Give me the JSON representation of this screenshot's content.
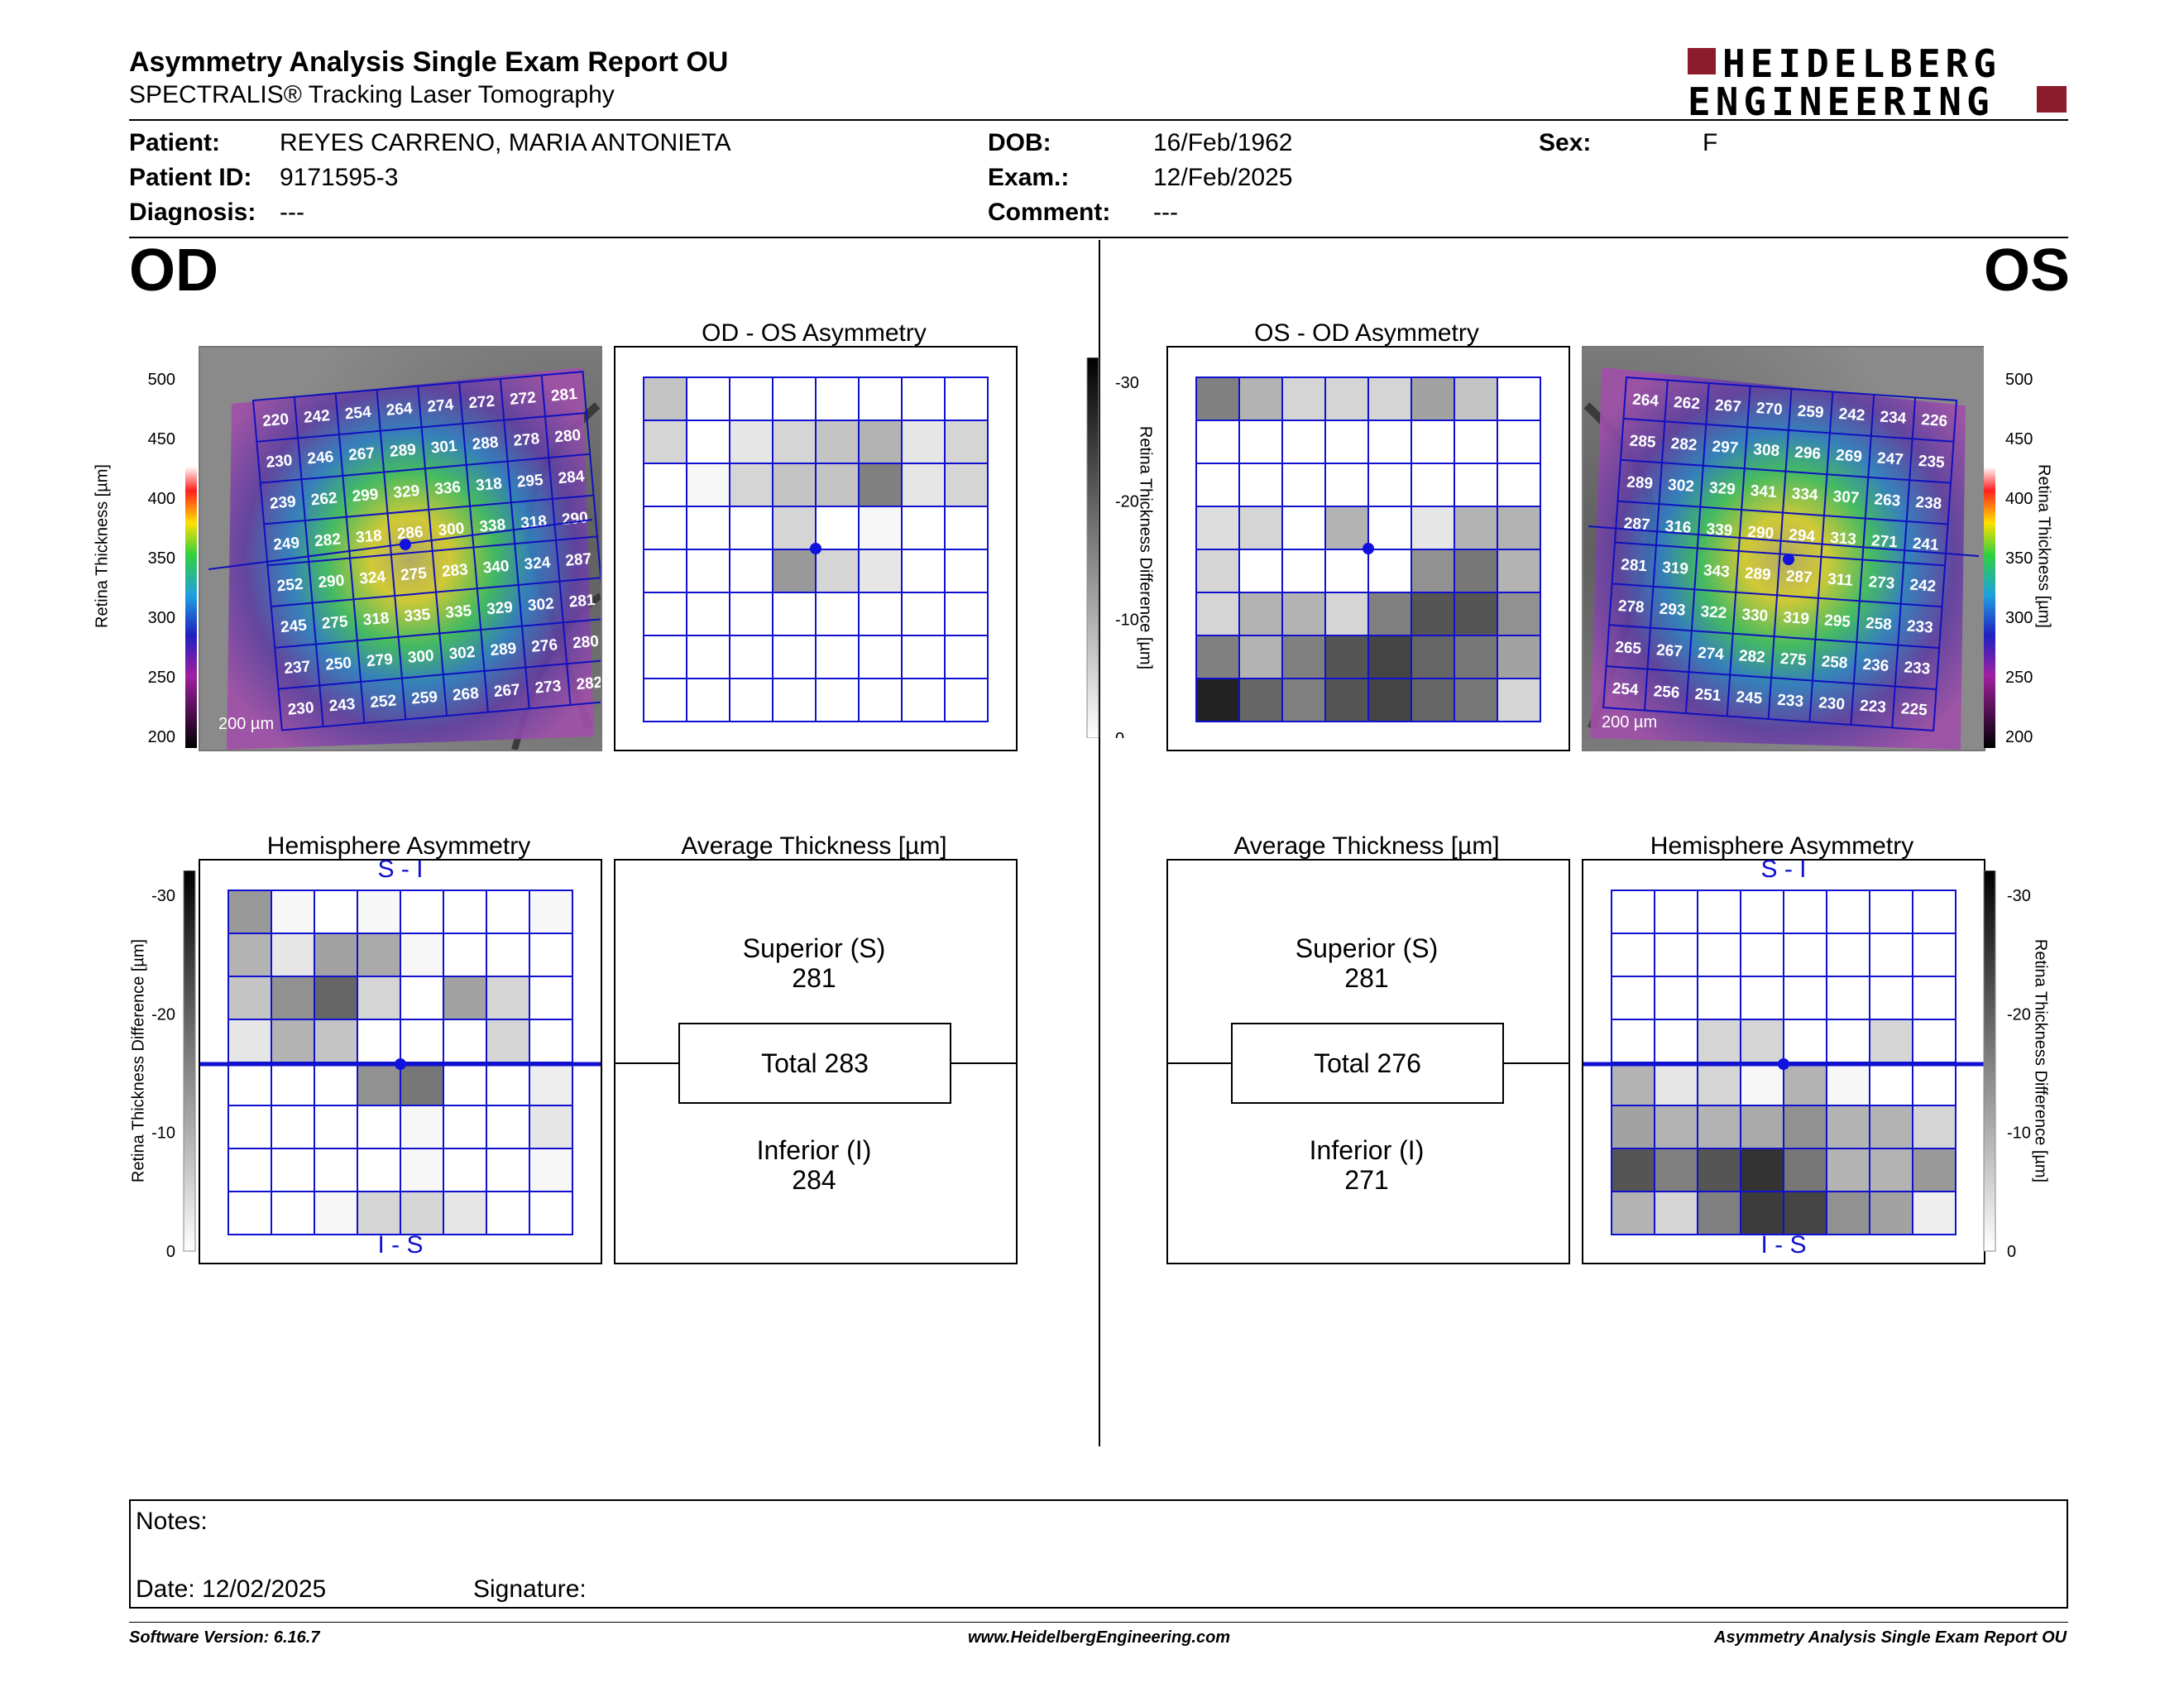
{
  "header": {
    "title": "Asymmetry Analysis Single Exam Report OU",
    "subtitle": "SPECTRALIS® Tracking Laser Tomography",
    "logo_line1": "HEIDELBERG",
    "logo_line2": "ENGINEERING",
    "brand_color": "#8c1c2c"
  },
  "patient": {
    "patient_label": "Patient:",
    "patient": "REYES CARRENO, MARIA ANTONIETA",
    "id_label": "Patient ID:",
    "id": "9171595-3",
    "diagnosis_label": "Diagnosis:",
    "diagnosis": "---",
    "dob_label": "DOB:",
    "dob": "16/Feb/1962",
    "exam_label": "Exam.:",
    "exam": "12/Feb/2025",
    "comment_label": "Comment:",
    "comment": "---",
    "sex_label": "Sex:",
    "sex": "F"
  },
  "od": {
    "eye": "OD",
    "asym_title": "OD - OS Asymmetry",
    "hemi_title": "Hemisphere Asymmetry",
    "hemi_top": "S - I",
    "hemi_bottom": "I - S",
    "avg_title": "Average Thickness [µm]",
    "superior_label": "Superior (S)",
    "superior": "281",
    "total_label": "Total 283",
    "inferior_label": "Inferior (I)",
    "inferior": "284",
    "scale_bar": "200 µm",
    "thickness": [
      [
        220,
        242,
        254,
        264,
        274,
        272,
        272,
        281
      ],
      [
        230,
        246,
        267,
        289,
        301,
        288,
        278,
        280
      ],
      [
        239,
        262,
        299,
        329,
        336,
        318,
        295,
        284
      ],
      [
        249,
        282,
        318,
        286,
        300,
        338,
        318,
        290
      ],
      [
        252,
        290,
        324,
        275,
        283,
        340,
        324,
        287
      ],
      [
        245,
        275,
        318,
        335,
        335,
        329,
        302,
        281
      ],
      [
        237,
        250,
        279,
        300,
        302,
        289,
        276,
        280
      ],
      [
        230,
        243,
        252,
        259,
        268,
        267,
        273,
        282
      ]
    ],
    "asym_grid": [
      [
        7,
        0,
        0,
        0,
        0,
        0,
        0,
        0
      ],
      [
        5,
        0,
        3,
        5,
        7,
        9,
        3,
        5
      ],
      [
        0,
        1,
        5,
        7,
        7,
        15,
        3,
        5
      ],
      [
        0,
        0,
        0,
        5,
        0,
        1,
        0,
        0
      ],
      [
        0,
        0,
        0,
        12,
        5,
        3,
        0,
        0
      ],
      [
        0,
        0,
        0,
        0,
        0,
        0,
        0,
        0
      ],
      [
        0,
        0,
        0,
        0,
        0,
        0,
        0,
        0
      ],
      [
        0,
        0,
        0,
        0,
        0,
        0,
        0,
        0
      ]
    ],
    "hemi_grid": [
      [
        12,
        1,
        0,
        1,
        0,
        0,
        0,
        1
      ],
      [
        9,
        3,
        11,
        10,
        1,
        0,
        0,
        0
      ],
      [
        7,
        13,
        18,
        5,
        0,
        11,
        5,
        0
      ],
      [
        3,
        9,
        7,
        0,
        0,
        0,
        5,
        0
      ],
      [
        0,
        0,
        0,
        13,
        16,
        0,
        0,
        2
      ],
      [
        0,
        0,
        0,
        0,
        1,
        0,
        0,
        3
      ],
      [
        0,
        0,
        0,
        0,
        1,
        0,
        0,
        1
      ],
      [
        0,
        0,
        1,
        5,
        5,
        3,
        0,
        0
      ]
    ]
  },
  "os": {
    "eye": "OS",
    "asym_title": "OS - OD Asymmetry",
    "hemi_title": "Hemisphere Asymmetry",
    "hemi_top": "S - I",
    "hemi_bottom": "I - S",
    "avg_title": "Average Thickness [µm]",
    "superior_label": "Superior (S)",
    "superior": "281",
    "total_label": "Total 276",
    "inferior_label": "Inferior (I)",
    "inferior": "271",
    "scale_bar": "200 µm",
    "thickness": [
      [
        264,
        262,
        267,
        270,
        259,
        242,
        234,
        226
      ],
      [
        285,
        282,
        297,
        308,
        296,
        269,
        247,
        235
      ],
      [
        289,
        302,
        329,
        341,
        334,
        307,
        263,
        238
      ],
      [
        287,
        316,
        339,
        290,
        294,
        313,
        271,
        241
      ],
      [
        281,
        319,
        343,
        289,
        287,
        311,
        273,
        242
      ],
      [
        278,
        293,
        322,
        330,
        319,
        295,
        258,
        233
      ],
      [
        265,
        267,
        274,
        282,
        275,
        258,
        236,
        233
      ],
      [
        254,
        256,
        251,
        245,
        233,
        230,
        223,
        225
      ]
    ],
    "asym_grid": [
      [
        15,
        9,
        5,
        5,
        5,
        11,
        7,
        0
      ],
      [
        0,
        0,
        0,
        0,
        0,
        0,
        0,
        0
      ],
      [
        0,
        0,
        0,
        0,
        0,
        0,
        0,
        0
      ],
      [
        4,
        5,
        0,
        9,
        0,
        3,
        9,
        9
      ],
      [
        5,
        0,
        0,
        0,
        0,
        13,
        16,
        9
      ],
      [
        5,
        9,
        9,
        5,
        15,
        20,
        20,
        13
      ],
      [
        15,
        9,
        15,
        20,
        22,
        18,
        16,
        11
      ],
      [
        26,
        18,
        15,
        20,
        22,
        18,
        16,
        5
      ]
    ],
    "hemi_grid": [
      [
        0,
        0,
        0,
        0,
        0,
        0,
        0,
        0
      ],
      [
        0,
        0,
        0,
        0,
        0,
        0,
        0,
        0
      ],
      [
        0,
        0,
        0,
        0,
        0,
        0,
        0,
        0
      ],
      [
        0,
        0,
        5,
        5,
        0,
        0,
        5,
        0
      ],
      [
        9,
        3,
        5,
        1,
        9,
        1,
        0,
        0
      ],
      [
        11,
        9,
        9,
        10,
        13,
        9,
        9,
        5
      ],
      [
        20,
        15,
        20,
        24,
        16,
        9,
        9,
        12
      ],
      [
        9,
        5,
        15,
        23,
        22,
        13,
        11,
        2
      ]
    ]
  },
  "scales": {
    "thickness_label": "Retina Thickness [µm]",
    "thickness_ticks": [
      "500",
      "450",
      "400",
      "350",
      "300",
      "250",
      "200"
    ],
    "diff_label": "Retina Thickness Difference [µm]",
    "diff_ticks": [
      "-30",
      "-20",
      "-10",
      "0"
    ]
  },
  "notes": {
    "notes_label": "Notes:",
    "date_label": "Date: 12/02/2025",
    "signature_label": "Signature:"
  },
  "footer": {
    "software": "Software Version: 6.16.7",
    "website": "www.HeidelbergEngineering.com",
    "report": "Asymmetry Analysis Single Exam Report OU"
  }
}
